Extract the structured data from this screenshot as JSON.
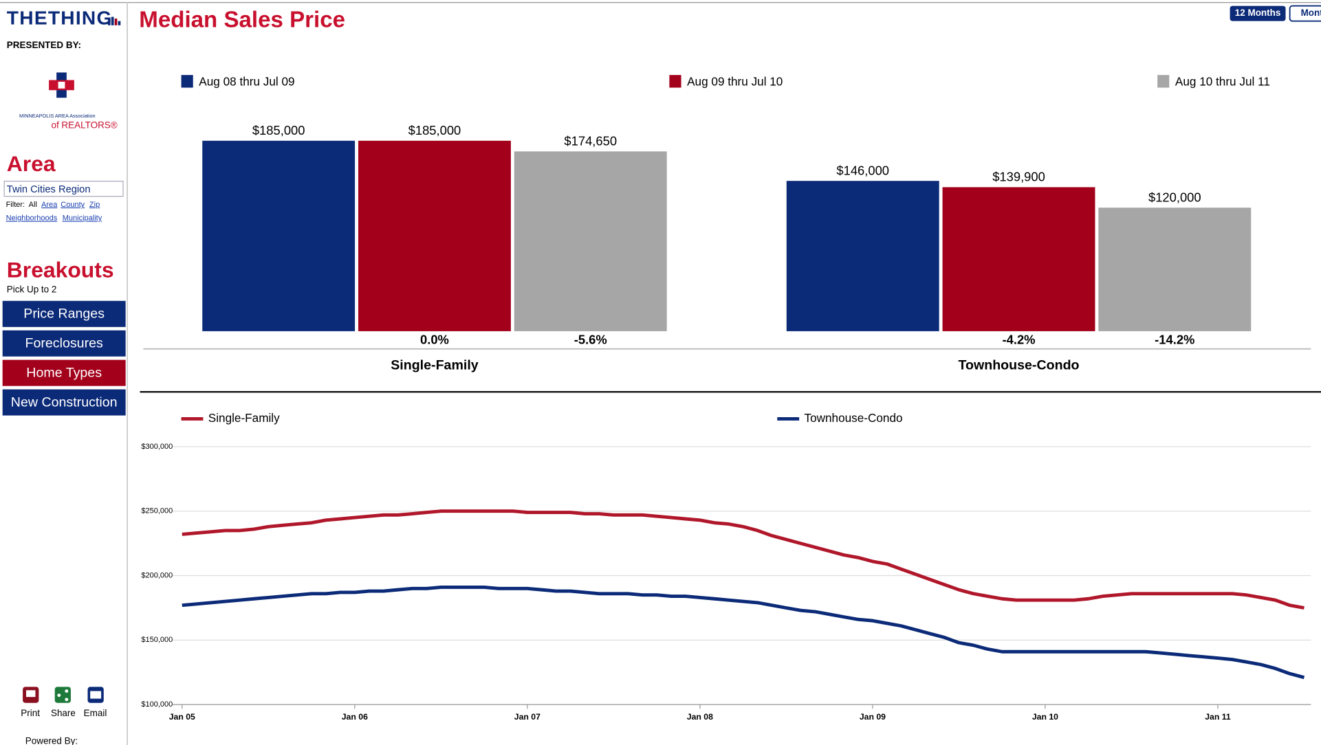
{
  "sidebar": {
    "logo": "THETHING",
    "presented_by": "PRESENTED BY:",
    "org_line1": "MINNEAPOLIS AREA Association",
    "org_line2": "of REALTORS®",
    "area_heading": "Area",
    "area_value": "Twin Cities Region",
    "filter_label": "Filter:",
    "filters": [
      "All",
      "Area",
      "County",
      "Zip",
      "Neighborhoods",
      "Municipality"
    ],
    "breakouts_heading": "Breakouts",
    "breakouts_hint": "Pick Up to 2",
    "breakouts": [
      "Price Ranges",
      "Foreclosures",
      "Home Types",
      "New Construction"
    ],
    "actions": [
      "Print",
      "Share",
      "Email"
    ],
    "powered_by": "Powered By:"
  },
  "header": {
    "title": "Median Sales Price",
    "buttons": [
      "12 Months",
      "Mont"
    ]
  },
  "chart_data": [
    {
      "type": "bar",
      "categories": [
        "Single-Family",
        "Townhouse-Condo"
      ],
      "series": [
        {
          "name": "Aug 08 thru Jul 09",
          "color": "#0b2a78",
          "values": [
            185000,
            146000
          ],
          "value_labels": [
            "$185,000",
            "$146,000"
          ]
        },
        {
          "name": "Aug 09 thru Jul 10",
          "color": "#a3001b",
          "values": [
            185000,
            139900
          ],
          "value_labels": [
            "$185,000",
            "$139,900"
          ],
          "change_labels": [
            "0.0%",
            "-4.2%"
          ]
        },
        {
          "name": "Aug 10 thru Jul 11",
          "color": "#a6a6a6",
          "values": [
            174650,
            120000
          ],
          "value_labels": [
            "$174,650",
            "$120,000"
          ],
          "change_labels": [
            "-5.6%",
            "-14.2%"
          ]
        }
      ]
    },
    {
      "type": "line",
      "x": [
        "2005-01",
        "2005-02",
        "2005-03",
        "2005-04",
        "2005-05",
        "2005-06",
        "2005-07",
        "2005-08",
        "2005-09",
        "2005-10",
        "2005-11",
        "2005-12",
        "2006-01",
        "2006-02",
        "2006-03",
        "2006-04",
        "2006-05",
        "2006-06",
        "2006-07",
        "2006-08",
        "2006-09",
        "2006-10",
        "2006-11",
        "2006-12",
        "2007-01",
        "2007-02",
        "2007-03",
        "2007-04",
        "2007-05",
        "2007-06",
        "2007-07",
        "2007-08",
        "2007-09",
        "2007-10",
        "2007-11",
        "2007-12",
        "2008-01",
        "2008-02",
        "2008-03",
        "2008-04",
        "2008-05",
        "2008-06",
        "2008-07",
        "2008-08",
        "2008-09",
        "2008-10",
        "2008-11",
        "2008-12",
        "2009-01",
        "2009-02",
        "2009-03",
        "2009-04",
        "2009-05",
        "2009-06",
        "2009-07",
        "2009-08",
        "2009-09",
        "2009-10",
        "2009-11",
        "2009-12",
        "2010-01",
        "2010-02",
        "2010-03",
        "2010-04",
        "2010-05",
        "2010-06",
        "2010-07",
        "2010-08",
        "2010-09",
        "2010-10",
        "2010-11",
        "2010-12",
        "2011-01",
        "2011-02",
        "2011-03",
        "2011-04",
        "2011-05",
        "2011-06",
        "2011-07"
      ],
      "series": [
        {
          "name": "Single-Family",
          "color": "#b0172a",
          "values": [
            232000,
            233000,
            234000,
            235000,
            235000,
            236000,
            238000,
            239000,
            240000,
            241000,
            243000,
            244000,
            245000,
            246000,
            247000,
            247000,
            248000,
            249000,
            250000,
            250000,
            250000,
            250000,
            250000,
            250000,
            249000,
            249000,
            249000,
            249000,
            248000,
            248000,
            247000,
            247000,
            247000,
            246000,
            245000,
            244000,
            243000,
            241000,
            240000,
            238000,
            235000,
            231000,
            228000,
            225000,
            222000,
            219000,
            216000,
            214000,
            211000,
            209000,
            205000,
            201000,
            197000,
            193000,
            189000,
            186000,
            184000,
            182000,
            181000,
            181000,
            181000,
            181000,
            181000,
            182000,
            184000,
            185000,
            186000,
            186000,
            186000,
            186000,
            186000,
            186000,
            186000,
            186000,
            185000,
            183000,
            181000,
            177000,
            175000
          ]
        },
        {
          "name": "Townhouse-Condo",
          "color": "#0b2a78",
          "values": [
            177000,
            178000,
            179000,
            180000,
            181000,
            182000,
            183000,
            184000,
            185000,
            186000,
            186000,
            187000,
            187000,
            188000,
            188000,
            189000,
            190000,
            190000,
            191000,
            191000,
            191000,
            191000,
            190000,
            190000,
            190000,
            189000,
            188000,
            188000,
            187000,
            186000,
            186000,
            186000,
            185000,
            185000,
            184000,
            184000,
            183000,
            182000,
            181000,
            180000,
            179000,
            177000,
            175000,
            173000,
            172000,
            170000,
            168000,
            166000,
            165000,
            163000,
            161000,
            158000,
            155000,
            152000,
            148000,
            146000,
            143000,
            141000,
            141000,
            141000,
            141000,
            141000,
            141000,
            141000,
            141000,
            141000,
            141000,
            141000,
            140000,
            139000,
            138000,
            137000,
            136000,
            135000,
            133000,
            131000,
            128000,
            124000,
            121000
          ]
        }
      ],
      "ylim": [
        100000,
        300000
      ],
      "yticks": [
        {
          "value": 100000,
          "label": "$100,000"
        },
        {
          "value": 150000,
          "label": "$150,000"
        },
        {
          "value": 200000,
          "label": "$200,000"
        },
        {
          "value": 250000,
          "label": "$250,000"
        },
        {
          "value": 300000,
          "label": "$300,000"
        }
      ],
      "xticks": [
        {
          "value": "2005-01",
          "label": "Jan 05"
        },
        {
          "value": "2006-01",
          "label": "Jan 06"
        },
        {
          "value": "2007-01",
          "label": "Jan 07"
        },
        {
          "value": "2008-01",
          "label": "Jan 08"
        },
        {
          "value": "2009-01",
          "label": "Jan 09"
        },
        {
          "value": "2010-01",
          "label": "Jan 10"
        },
        {
          "value": "2011-01",
          "label": "Jan 11"
        }
      ],
      "grid": true
    }
  ]
}
